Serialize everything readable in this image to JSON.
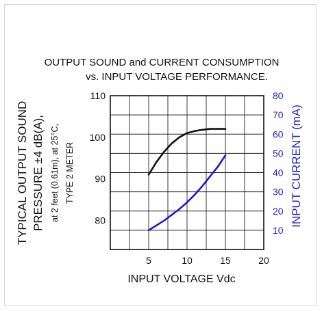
{
  "chart_data": {
    "type": "line",
    "title_line1": "OUTPUT SOUND and CURRENT CONSUMPTION",
    "title_line2": "vs. INPUT VOLTAGE PERFORMANCE.",
    "xlabel": "INPUT VOLTAGE Vdc",
    "ylabel_line1": "TYPICAL OUTPUT SOUND",
    "ylabel_line2": "PRESSURE ±4 dB(A),",
    "ylabel_line3": "at 2 feet (0.61m), at 25°C,",
    "ylabel_line4": "TYPE 2 METER",
    "y2label": "INPUT CURRENT (mA)",
    "x_ticks": [
      "5",
      "10",
      "15",
      "20"
    ],
    "y_ticks": [
      "80",
      "90",
      "100",
      "110"
    ],
    "y2_ticks": [
      "10",
      "20",
      "30",
      "40",
      "50",
      "60",
      "70",
      "80"
    ],
    "xlim": [
      0,
      20
    ],
    "ylim": [
      73,
      110
    ],
    "y2lim": [
      0,
      80
    ],
    "grid": true,
    "colors": {
      "sound": "#111111",
      "current": "#1a1acc",
      "right_axis_text": "#2323c8"
    },
    "series": [
      {
        "axis": "left",
        "x": [
          5,
          6,
          7,
          8,
          9,
          10,
          11,
          12,
          13,
          14,
          15
        ],
        "values": [
          91,
          94,
          96.5,
          98.5,
          100,
          101,
          101.5,
          101.8,
          102,
          102,
          102
        ]
      },
      {
        "axis": "right",
        "x": [
          5,
          6,
          7,
          8,
          9,
          10,
          11,
          12,
          13,
          14,
          15
        ],
        "values": [
          10,
          12.5,
          15,
          18,
          21,
          24.5,
          28.5,
          33,
          38,
          43,
          49
        ]
      }
    ]
  }
}
